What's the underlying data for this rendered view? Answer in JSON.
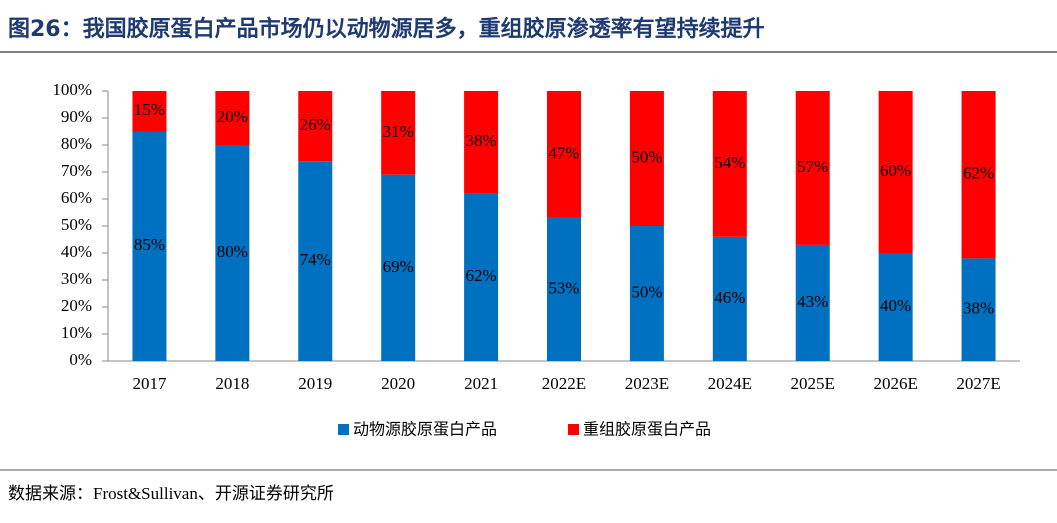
{
  "chart_data": {
    "type": "stacked_bar",
    "title": "图26：我国胶原蛋白产品市场仍以动物源居多，重组胶原渗透率有望持续提升",
    "source": "数据来源：Frost&Sullivan、开源证券研究所",
    "categories": [
      "2017",
      "2018",
      "2019",
      "2020",
      "2021",
      "2022E",
      "2023E",
      "2024E",
      "2025E",
      "2026E",
      "2027E"
    ],
    "series": [
      {
        "name": "动物源胶原蛋白产品",
        "color": "#0070c0",
        "values": [
          85,
          80,
          74,
          69,
          62,
          53,
          50,
          46,
          43,
          40,
          38
        ],
        "value_labels": [
          "85%",
          "80%",
          "74%",
          "69%",
          "62%",
          "53%",
          "50%",
          "46%",
          "43%",
          "40%",
          "38%"
        ]
      },
      {
        "name": "重组胶原蛋白产品",
        "color": "#ff0000",
        "values": [
          15,
          20,
          26,
          31,
          38,
          47,
          50,
          54,
          57,
          60,
          62
        ],
        "value_labels": [
          "15%",
          "20%",
          "26%",
          "31%",
          "38%",
          "47%",
          "50%",
          "54%",
          "57%",
          "60%",
          "62%"
        ]
      }
    ],
    "ylim": [
      0,
      100
    ],
    "yticks": [
      {
        "value": 0,
        "label": "0%"
      },
      {
        "value": 10,
        "label": "10%"
      },
      {
        "value": 20,
        "label": "20%"
      },
      {
        "value": 30,
        "label": "30%"
      },
      {
        "value": 40,
        "label": "40%"
      },
      {
        "value": 50,
        "label": "50%"
      },
      {
        "value": 60,
        "label": "60%"
      },
      {
        "value": 70,
        "label": "70%"
      },
      {
        "value": 80,
        "label": "80%"
      },
      {
        "value": 90,
        "label": "90%"
      },
      {
        "value": 100,
        "label": "100%"
      }
    ],
    "legend": "bottom"
  }
}
